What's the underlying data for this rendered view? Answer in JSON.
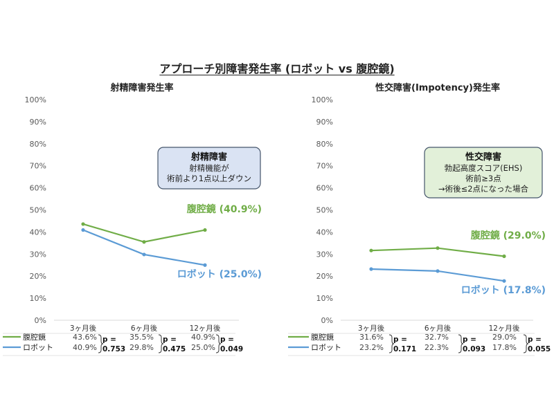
{
  "page_title": "アプローチ別障害発生率 (ロボット vs 腹腔鏡)",
  "colors": {
    "laparoscopy": "#70ad47",
    "robot": "#5b9bd5",
    "callout_left_fill": "#dae3f3",
    "callout_right_fill": "#e2f0d9",
    "callout_border": "#44546a"
  },
  "chart_data": [
    {
      "type": "line",
      "title": "射精障害発生率",
      "categories": [
        "3ヶ月後",
        "6ヶ月後",
        "12ヶ月後"
      ],
      "ylim": [
        0,
        100
      ],
      "y_ticks": [
        "0%",
        "10%",
        "20%",
        "30%",
        "40%",
        "50%",
        "60%",
        "70%",
        "80%",
        "90%",
        "100%"
      ],
      "grid": false,
      "series": [
        {
          "name": "腹腔鏡",
          "values": [
            43.6,
            35.5,
            40.9
          ],
          "end_label": "腹腔鏡 (40.9%)",
          "table": [
            "43.6%",
            "35.5%",
            "40.9%"
          ]
        },
        {
          "name": "ロボット",
          "values": [
            40.9,
            29.8,
            25.0
          ],
          "end_label": "ロボット (25.0%)",
          "table": [
            "40.9%",
            "29.8%",
            "25.0%"
          ]
        }
      ],
      "p_values": [
        "0.753",
        "0.475",
        "0.049"
      ],
      "callout": {
        "title": "射精障害",
        "lines": [
          "射精機能が",
          "術前より1点以上ダウン"
        ]
      }
    },
    {
      "type": "line",
      "title": "性交障害(Impotency)発生率",
      "categories": [
        "3ヶ月後",
        "6ヶ月後",
        "12ヶ月後"
      ],
      "ylim": [
        0,
        100
      ],
      "y_ticks": [
        "0%",
        "10%",
        "20%",
        "30%",
        "40%",
        "50%",
        "60%",
        "70%",
        "80%",
        "90%",
        "100%"
      ],
      "grid": false,
      "series": [
        {
          "name": "腹腔鏡",
          "values": [
            31.6,
            32.7,
            29.0
          ],
          "end_label": "腹腔鏡 (29.0%)",
          "table": [
            "31.6%",
            "32.7%",
            "29.0%"
          ]
        },
        {
          "name": "ロボット",
          "values": [
            23.2,
            22.3,
            17.8
          ],
          "end_label": "ロボット (17.8%)",
          "table": [
            "23.2%",
            "22.3%",
            "17.8%"
          ]
        }
      ],
      "p_values": [
        "0.171",
        "0.093",
        "0.055"
      ],
      "callout": {
        "title": "性交障害",
        "lines": [
          "勃起高度スコア(EHS)",
          "術前≥3点",
          "→術後≤2点になった場合"
        ]
      }
    }
  ],
  "p_label": "p ="
}
